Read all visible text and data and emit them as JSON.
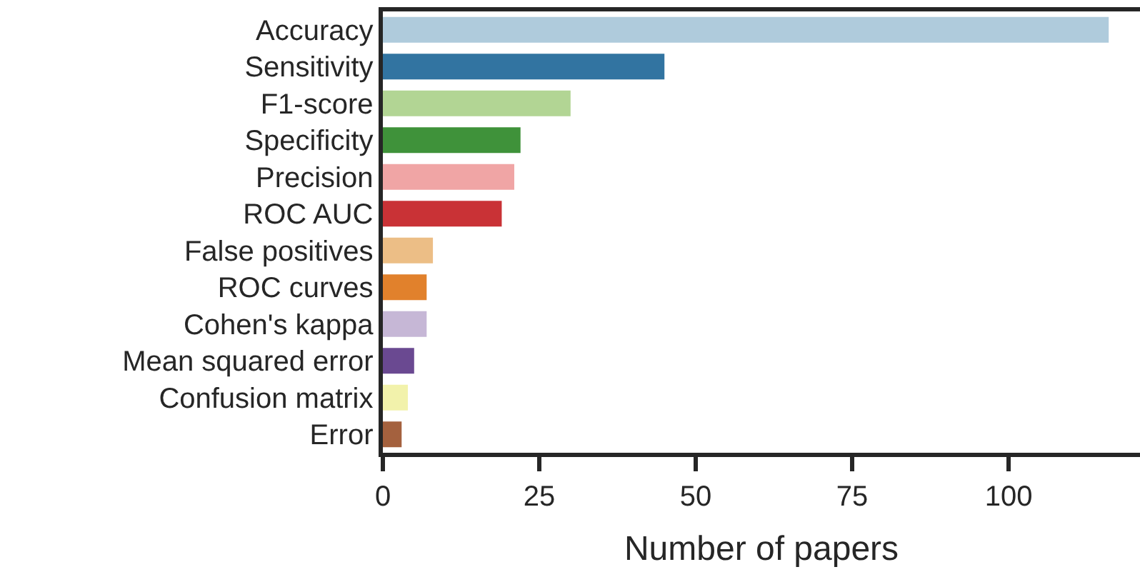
{
  "chart_data": {
    "type": "bar",
    "orientation": "horizontal",
    "xlabel": "Number of papers",
    "categories": [
      "Accuracy",
      "Sensitivity",
      "F1-score",
      "Specificity",
      "Precision",
      "ROC AUC",
      "False positives",
      "ROC curves",
      "Cohen's kappa",
      "Mean squared error",
      "Confusion matrix",
      "Error"
    ],
    "values": [
      116,
      45,
      30,
      22,
      21,
      19,
      8,
      7,
      7,
      5,
      4,
      3
    ],
    "colors": [
      "#afcbdc",
      "#3274a1",
      "#b2d594",
      "#3f923a",
      "#f0a5a5",
      "#c93236",
      "#ecbe86",
      "#e1812c",
      "#c6b7d6",
      "#6a4991",
      "#f2f2ab",
      "#a4613e"
    ],
    "xlim": [
      0,
      121
    ],
    "xticks": [
      0,
      25,
      50,
      75,
      100
    ],
    "grid": false
  }
}
